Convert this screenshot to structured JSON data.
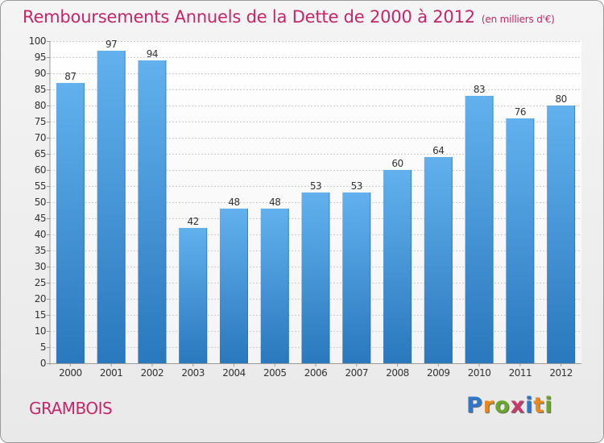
{
  "title": "Remboursements Annuels de la Dette de 2000 à 2012",
  "unit": "(en milliers d'€)",
  "commune": "GRAMBOIS",
  "logo": {
    "letters": [
      "P",
      "r",
      "o",
      "x",
      "i",
      "t",
      "i"
    ],
    "colors": [
      "#2f78c9",
      "#e8891b",
      "#6aa62b",
      "#c93a6a",
      "#2f78c9",
      "#e8891b",
      "#6aa62b"
    ]
  },
  "chart_data": {
    "type": "bar",
    "categories": [
      "2000",
      "2001",
      "2002",
      "2003",
      "2004",
      "2005",
      "2006",
      "2007",
      "2008",
      "2009",
      "2010",
      "2011",
      "2012"
    ],
    "values": [
      87,
      97,
      94,
      42,
      48,
      48,
      53,
      53,
      60,
      64,
      83,
      76,
      80
    ],
    "ylim": [
      0,
      100
    ],
    "ytick_step": 5,
    "grid": true,
    "bar_color": "#3d93d8"
  }
}
